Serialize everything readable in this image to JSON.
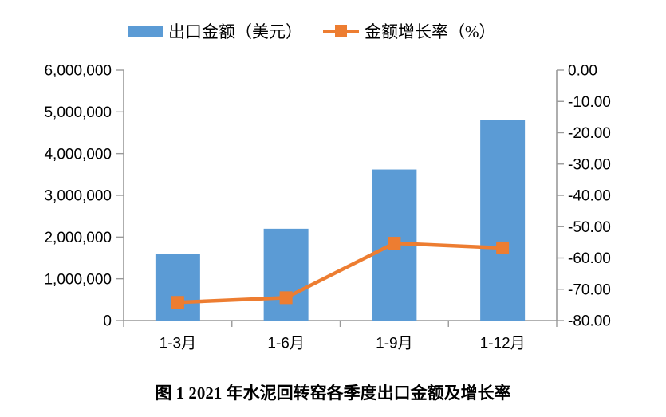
{
  "legend": {
    "items": [
      {
        "label": "出口金额（美元）",
        "type": "bar"
      },
      {
        "label": "金额增长率（%）",
        "type": "line"
      }
    ]
  },
  "caption": "图 1  2021 年水泥回转窑各季度出口金额及增长率",
  "colors": {
    "bar": "#5B9BD5",
    "line": "#ED7D31",
    "axis": "#999999",
    "text": "#000000",
    "background": "#ffffff"
  },
  "chart_data": {
    "type": "bar",
    "subtype": "combo-bar-line-dual-axis",
    "categories": [
      "1-3月",
      "1-6月",
      "1-9月",
      "1-12月"
    ],
    "series": [
      {
        "name": "出口金额（美元）",
        "type": "bar",
        "axis": "left",
        "values": [
          1600000,
          2200000,
          3620000,
          4800000
        ]
      },
      {
        "name": "金额增长率（%）",
        "type": "line",
        "axis": "right",
        "marker": "square",
        "values": [
          -74.2,
          -72.7,
          -55.3,
          -56.8
        ]
      }
    ],
    "left_axis": {
      "min": 0,
      "max": 6000000,
      "step": 1000000,
      "tick_labels": [
        "6,000,000",
        "5,000,000",
        "4,000,000",
        "3,000,000",
        "2,000,000",
        "1,000,000",
        "0"
      ]
    },
    "right_axis": {
      "min": -80,
      "max": 0,
      "step": 10,
      "tick_labels": [
        "0.00",
        "-10.00",
        "-20.00",
        "-30.00",
        "-40.00",
        "-50.00",
        "-60.00",
        "-70.00",
        "-80.00"
      ]
    },
    "grid": false,
    "legend_position": "top",
    "title": "图 1  2021 年水泥回转窑各季度出口金额及增长率"
  }
}
